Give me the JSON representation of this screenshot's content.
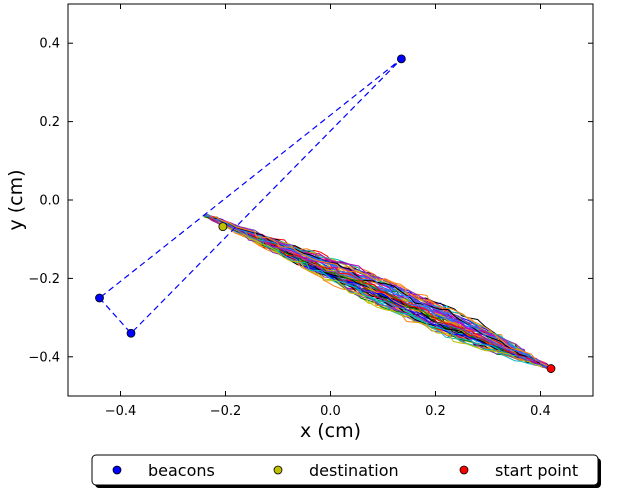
{
  "chart_data": {
    "type": "scatter",
    "title": "",
    "xlabel": "x (cm)",
    "ylabel": "y (cm)",
    "xlim": [
      -0.5,
      0.5
    ],
    "ylim": [
      -0.5,
      0.5
    ],
    "x_ticks": [
      -0.4,
      -0.2,
      0.0,
      0.2,
      0.4
    ],
    "x_tick_labels": [
      "−0.4",
      "−0.2",
      "0.0",
      "0.2",
      "0.4"
    ],
    "y_ticks": [
      -0.4,
      -0.2,
      0.0,
      0.2,
      0.4
    ],
    "y_tick_labels": [
      "−0.4",
      "−0.2",
      "0.0",
      "0.2",
      "0.4"
    ],
    "grid": false,
    "legend_position": "bottom-center",
    "series": [
      {
        "name": "beacons",
        "color": "#0000ff",
        "points": [
          [
            -0.44,
            -0.25
          ],
          [
            -0.38,
            -0.34
          ],
          [
            0.135,
            0.36
          ]
        ]
      },
      {
        "name": "destination",
        "color": "#bfbf00",
        "points": [
          [
            -0.205,
            -0.068
          ]
        ]
      },
      {
        "name": "start point",
        "color": "#ff0000",
        "points": [
          [
            0.42,
            -0.43
          ]
        ]
      }
    ],
    "beacon_connections": {
      "style": "dashed",
      "color": "#0000ff",
      "path": [
        [
          -0.44,
          -0.25
        ],
        [
          -0.38,
          -0.34
        ],
        [
          0.135,
          0.36
        ],
        [
          -0.44,
          -0.25
        ]
      ]
    },
    "trajectories": {
      "count": 60,
      "from": [
        0.42,
        -0.43
      ],
      "to": [
        -0.235,
        -0.04
      ],
      "colors": [
        "#0000ff",
        "#008000",
        "#ff0000",
        "#00bfbf",
        "#bf00bf",
        "#bfbf00",
        "#000000",
        "#1f77ff",
        "#ff7f0e",
        "#7f3fbf"
      ]
    }
  }
}
